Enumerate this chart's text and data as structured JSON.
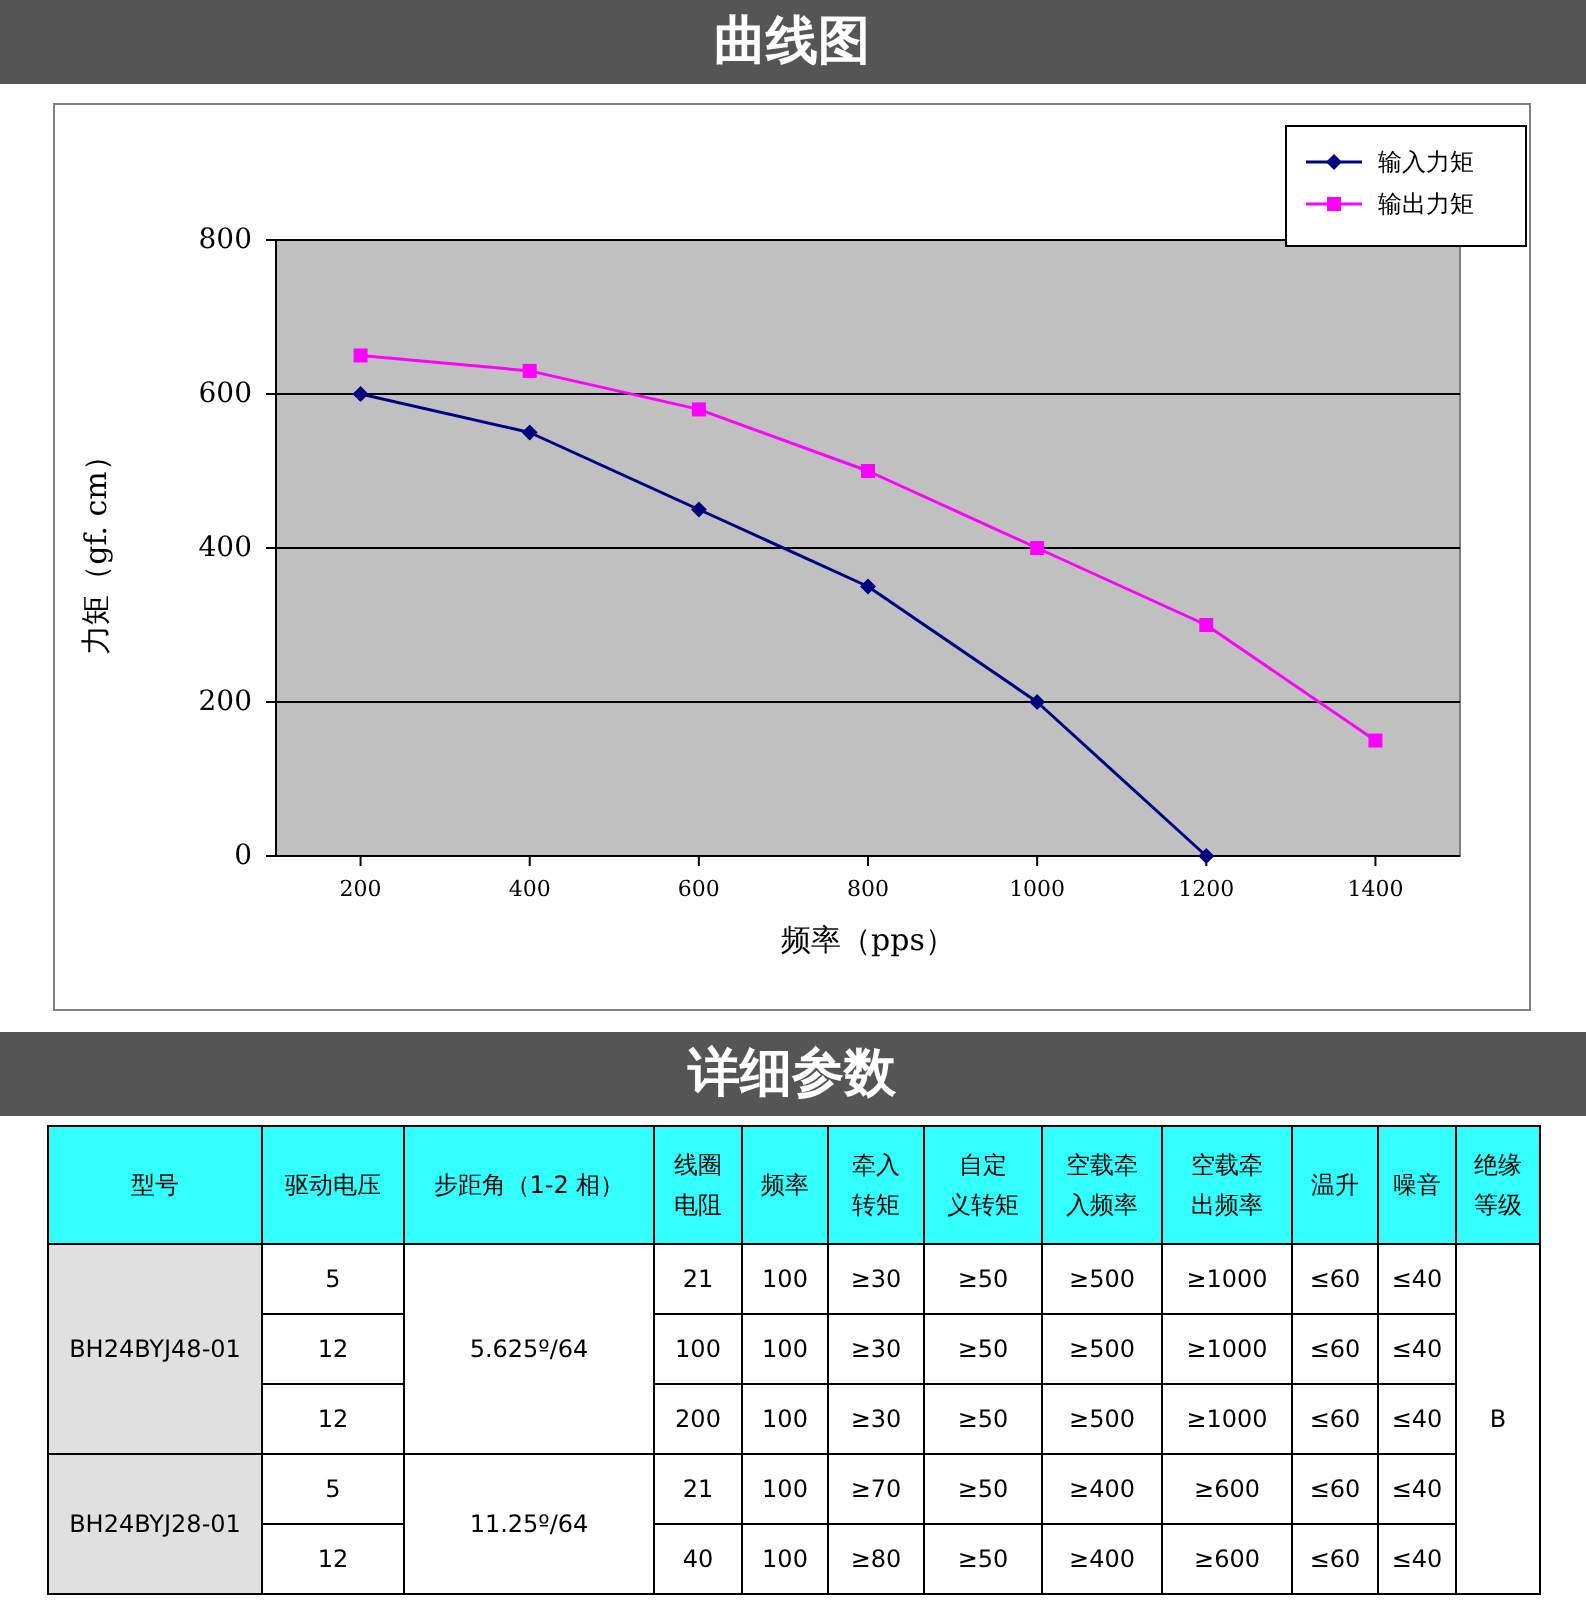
{
  "chart_data": [
    {
      "type": "line",
      "title": "曲线图",
      "xlabel": "频率（pps）",
      "ylabel": "力矩（gf. cm）",
      "xlim": [
        100,
        1500
      ],
      "ylim": [
        0,
        800
      ],
      "xticks": [
        200,
        400,
        600,
        800,
        1000,
        1200,
        1400
      ],
      "yticks": [
        0,
        200,
        400,
        600,
        800
      ],
      "grid": "y",
      "legend": "top right",
      "series": [
        {
          "name": "输入力矩",
          "color": "#000080",
          "marker": "diamond",
          "x": [
            200,
            400,
            600,
            800,
            1000,
            1200
          ],
          "values": [
            600,
            550,
            450,
            350,
            200,
            0
          ]
        },
        {
          "name": "输出力矩",
          "color": "#ff00ff",
          "marker": "square",
          "x": [
            200,
            400,
            600,
            800,
            1000,
            1200,
            1400
          ],
          "values": [
            650,
            630,
            580,
            500,
            400,
            300,
            150
          ]
        }
      ]
    },
    {
      "type": "other",
      "title": "详细参数",
      "categories": [
        "型号",
        "驱动电压",
        "步距角（1-2 相）",
        "线圈电阻",
        "频率",
        "牵入转矩",
        "自定义转矩",
        "空载牵入频率",
        "空载牵出频率",
        "温升",
        "噪音",
        "绝缘等级"
      ],
      "cell_labels": [
        [
          "BH24BYJ48-01",
          "5",
          "5.625º/64",
          "21",
          "100",
          "≥30",
          "≥50",
          "≥500",
          "≥1000",
          "≤60",
          "≤40",
          "B"
        ],
        [
          null,
          "12",
          null,
          "100",
          "100",
          "≥30",
          "≥50",
          "≥500",
          "≥1000",
          "≤60",
          "≤40",
          null
        ],
        [
          null,
          "12",
          null,
          "200",
          "100",
          "≥30",
          "≥50",
          "≥500",
          "≥1000",
          "≤60",
          "≤40",
          null
        ],
        [
          "BH24BYJ28-01",
          "5",
          "11.25º/64",
          "21",
          "100",
          "≥70",
          "≥50",
          "≥400",
          "≥600",
          "≤60",
          "≤40",
          null
        ],
        [
          null,
          "12",
          null,
          "40",
          "100",
          "≥80",
          "≥50",
          "≥400",
          "≥600",
          "≤60",
          "≤40",
          null
        ]
      ]
    }
  ]
}
